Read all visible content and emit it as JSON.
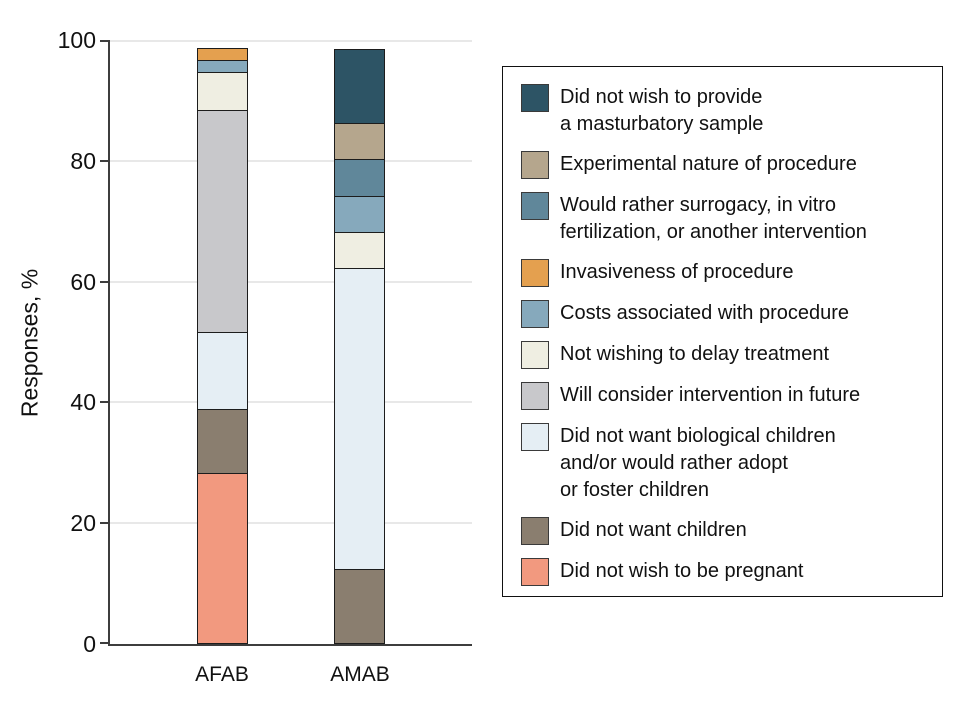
{
  "chart_data": {
    "type": "bar",
    "subtype": "stacked-percent",
    "categories": [
      "AFAB",
      "AMAB"
    ],
    "title": "",
    "xlabel": "",
    "ylabel": "Responses, %",
    "ylim": [
      0,
      100
    ],
    "yticks": [
      0,
      20,
      40,
      60,
      80,
      100
    ],
    "grid": true,
    "legend_position": "right",
    "series": [
      {
        "name": "Did not wish to be pregnant",
        "color": "#f2997f",
        "values": [
          28.3,
          0
        ]
      },
      {
        "name": "Did not want children",
        "color": "#8a7e6f",
        "values": [
          10.9,
          12.5
        ]
      },
      {
        "name": "Did not want biological children and/or would rather adopt or foster children",
        "color": "#e5eef4",
        "values": [
          13.0,
          50.0
        ]
      },
      {
        "name": "Will consider intervention in future",
        "color": "#c8c8cb",
        "values": [
          37.0,
          0
        ]
      },
      {
        "name": "Not wishing to delay treatment",
        "color": "#efeee2",
        "values": [
          6.5,
          6.25
        ]
      },
      {
        "name": "Costs associated with procedure",
        "color": "#86a9bc",
        "values": [
          2.2,
          6.25
        ]
      },
      {
        "name": "Invasiveness of procedure",
        "color": "#e4a04f",
        "values": [
          2.2,
          0
        ]
      },
      {
        "name": "Would rather surrogacy, in vitro fertilization, or another intervention",
        "color": "#60879a",
        "values": [
          0,
          6.25
        ]
      },
      {
        "name": "Experimental nature of procedure",
        "color": "#b5a68d",
        "values": [
          0,
          6.25
        ]
      },
      {
        "name": "Did not wish to provide a masturbatory sample",
        "color": "#2d5465",
        "values": [
          0,
          12.5
        ]
      }
    ]
  },
  "axes": {
    "ylabel": "Responses, %",
    "x_category_labels": [
      "AFAB",
      "AMAB"
    ]
  },
  "legend": {
    "items": [
      {
        "color": "#2d5465",
        "lines": [
          "Did not wish to provide",
          "a masturbatory sample"
        ]
      },
      {
        "color": "#b5a68d",
        "lines": [
          "Experimental nature of procedure"
        ]
      },
      {
        "color": "#60879a",
        "lines": [
          "Would rather surrogacy, in vitro",
          "fertilization, or another intervention"
        ]
      },
      {
        "color": "#e4a04f",
        "lines": [
          "Invasiveness of procedure"
        ]
      },
      {
        "color": "#86a9bc",
        "lines": [
          "Costs associated with procedure"
        ]
      },
      {
        "color": "#efeee2",
        "lines": [
          "Not wishing to delay treatment"
        ]
      },
      {
        "color": "#c8c8cb",
        "lines": [
          "Will consider intervention in future"
        ]
      },
      {
        "color": "#e5eef4",
        "lines": [
          "Did not want biological children",
          "and/or would rather adopt",
          "or foster children"
        ]
      },
      {
        "color": "#8a7e6f",
        "lines": [
          "Did not want children"
        ]
      },
      {
        "color": "#f2997f",
        "lines": [
          "Did not wish to be pregnant"
        ]
      }
    ]
  },
  "style_colors": {
    "axis_line": "#3d3d3d",
    "gridline": "#e8e8e8",
    "segment_border": "#1c1c1c",
    "legend_border": "#111111"
  }
}
